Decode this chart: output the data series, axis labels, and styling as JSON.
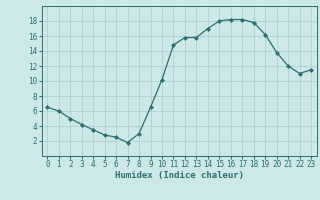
{
  "x": [
    0,
    1,
    2,
    3,
    4,
    5,
    6,
    7,
    8,
    9,
    10,
    11,
    12,
    13,
    14,
    15,
    16,
    17,
    18,
    19,
    20,
    21,
    22,
    23
  ],
  "y": [
    6.5,
    6.0,
    5.0,
    4.2,
    3.5,
    2.8,
    2.5,
    1.8,
    3.0,
    6.5,
    10.2,
    14.8,
    15.8,
    15.8,
    17.0,
    18.0,
    18.2,
    18.2,
    17.8,
    16.2,
    13.8,
    12.0,
    11.0,
    11.5
  ],
  "line_color": "#2d6e6e",
  "marker": "D",
  "marker_size": 2,
  "bg_color": "#cce8e8",
  "grid_color": "#aacccc",
  "xlabel": "Humidex (Indice chaleur)",
  "ylim": [
    0,
    20
  ],
  "xlim": [
    -0.5,
    23.5
  ],
  "yticks": [
    2,
    4,
    6,
    8,
    10,
    12,
    14,
    16,
    18
  ],
  "xticks": [
    0,
    1,
    2,
    3,
    4,
    5,
    6,
    7,
    8,
    9,
    10,
    11,
    12,
    13,
    14,
    15,
    16,
    17,
    18,
    19,
    20,
    21,
    22,
    23
  ],
  "font_color": "#2d6e6e",
  "tick_fontsize": 5.5,
  "xlabel_fontsize": 6.5,
  "linewidth": 0.9
}
